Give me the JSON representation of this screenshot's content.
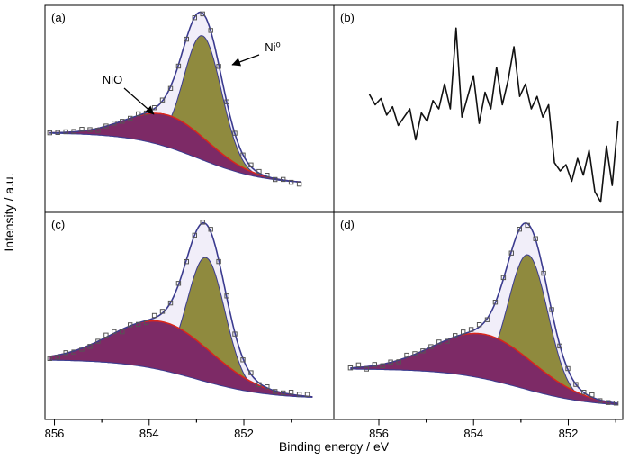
{
  "figure": {
    "xlabel": "Binding energy / eV",
    "ylabel": "Intensity / a.u."
  },
  "annotations": {
    "nio": "NiO",
    "ni0": "Ni⁰"
  },
  "colors": {
    "envelope": "#3b3b8f",
    "envelope_area": "#f1eef9",
    "ni0_fill": "#8f8a3e",
    "nio_fill": "#7d2a66",
    "nio_stroke": "#d9261c",
    "data_points": "#555555",
    "noise_line": "#111111",
    "frame": "#000000"
  },
  "chart_data": [
    {
      "panel_label": "(a)",
      "type": "area",
      "xlabel": "Binding energy / eV",
      "ylabel": "Intensity / a.u.",
      "x_range": [
        856.2,
        850.1
      ],
      "x_ticks": [
        856,
        854,
        852
      ],
      "data_x_range": [
        856.1,
        850.8
      ],
      "background": {
        "left": 0.385,
        "right": 0.135,
        "mid_ev": 852.95,
        "width_ev": 0.7
      },
      "components": [
        {
          "name": "NiO",
          "center_ev": 853.58,
          "sigma_ev": 0.85,
          "amplitude": 0.155
        },
        {
          "name": "Ni0",
          "center_ev": 852.87,
          "sigma_ev": 0.4,
          "amplitude": 0.6
        }
      ],
      "seed": 11
    },
    {
      "panel_label": "(b)",
      "type": "line",
      "x_range": [
        856.95,
        850.85
      ],
      "x_ticks": [
        856,
        854,
        852
      ],
      "data_x_range": [
        856.2,
        850.95
      ],
      "values": [
        0.57,
        0.52,
        0.55,
        0.47,
        0.51,
        0.42,
        0.46,
        0.5,
        0.35,
        0.48,
        0.44,
        0.54,
        0.5,
        0.62,
        0.5,
        0.89,
        0.46,
        0.56,
        0.66,
        0.43,
        0.58,
        0.5,
        0.7,
        0.52,
        0.64,
        0.8,
        0.56,
        0.62,
        0.5,
        0.56,
        0.46,
        0.52,
        0.24,
        0.2,
        0.23,
        0.15,
        0.26,
        0.18,
        0.3,
        0.1,
        0.05,
        0.32,
        0.13,
        0.44
      ]
    },
    {
      "panel_label": "(c)",
      "type": "area",
      "x_range": [
        856.2,
        850.1
      ],
      "x_ticks": [
        856,
        854,
        852
      ],
      "data_x_range": [
        856.1,
        850.55
      ],
      "background": {
        "left": 0.29,
        "right": 0.1,
        "mid_ev": 853.0,
        "width_ev": 0.75
      },
      "components": [
        {
          "name": "NiO",
          "center_ev": 853.7,
          "sigma_ev": 1.05,
          "amplitude": 0.234
        },
        {
          "name": "Ni0",
          "center_ev": 852.8,
          "sigma_ev": 0.4,
          "amplitude": 0.6
        }
      ],
      "seed": 23
    },
    {
      "panel_label": "(d)",
      "type": "area",
      "x_range": [
        856.95,
        850.85
      ],
      "x_ticks": [
        856,
        854,
        852
      ],
      "data_x_range": [
        856.6,
        850.95
      ],
      "background": {
        "left": 0.245,
        "right": 0.06,
        "mid_ev": 853.0,
        "width_ev": 0.75
      },
      "components": [
        {
          "name": "NiO",
          "center_ev": 853.75,
          "sigma_ev": 1.05,
          "amplitude": 0.215
        },
        {
          "name": "Ni0",
          "center_ev": 852.85,
          "sigma_ev": 0.42,
          "amplitude": 0.652
        }
      ],
      "seed": 37
    }
  ]
}
